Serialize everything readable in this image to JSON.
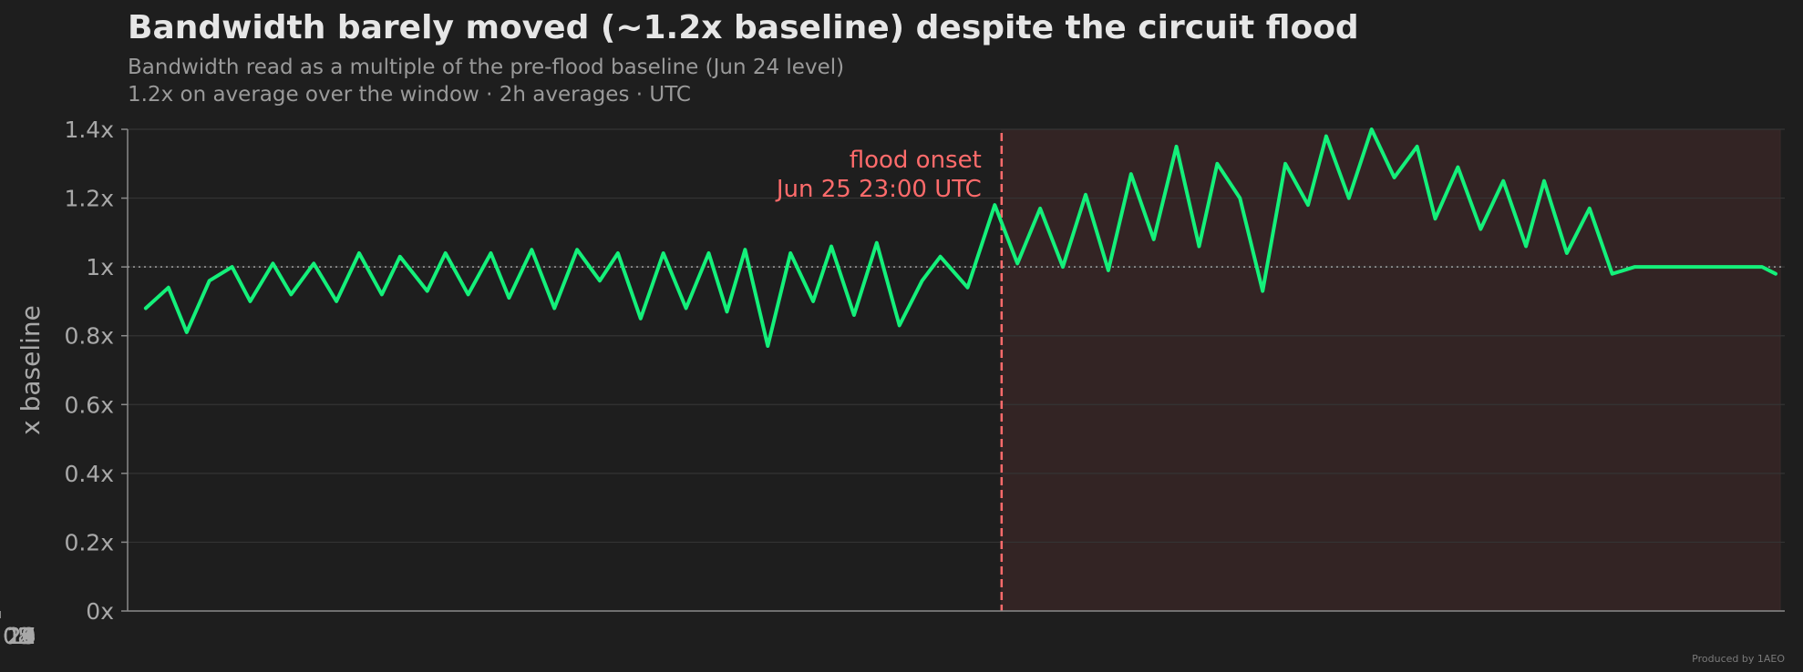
{
  "chart_data": {
    "type": "line",
    "title": "Bandwidth barely moved (~1.2x baseline) despite the circuit flood",
    "subtitle_lines": [
      "Bandwidth read as a multiple of the pre-flood baseline (Jun 24 level)",
      "1.2x on average over the window · 2h averages · UTC"
    ],
    "ylabel": "x baseline",
    "xlabel": "",
    "ylim": [
      0,
      1.4
    ],
    "y_ticks": [
      {
        "value": 0,
        "label": "0x"
      },
      {
        "value": 0.2,
        "label": "0.2x"
      },
      {
        "value": 0.4,
        "label": "0.4x"
      },
      {
        "value": 0.6,
        "label": "0.6x"
      },
      {
        "value": 0.8,
        "label": "0.8x"
      },
      {
        "value": 1.0,
        "label": "1x"
      },
      {
        "value": 1.2,
        "label": "1.2x"
      },
      {
        "value": 1.4,
        "label": "1.4x"
      }
    ],
    "xlim": [
      "2024-06-09T22:00",
      "2024-07-10T08:00"
    ],
    "x_ticks": [
      {
        "value": "2024-06-11",
        "label": "Jun 11"
      },
      {
        "value": "2024-06-14",
        "label": "Jun 14"
      },
      {
        "value": "2024-06-17",
        "label": "Jun 17"
      },
      {
        "value": "2024-06-20",
        "label": "Jun 20"
      },
      {
        "value": "2024-06-23",
        "label": "Jun 23"
      },
      {
        "value": "2024-06-26",
        "label": "Jun 26"
      },
      {
        "value": "2024-06-29",
        "label": "Jun 29"
      },
      {
        "value": "2024-07-02",
        "label": "Jul 02"
      },
      {
        "value": "2024-07-05",
        "label": "Jul 05"
      },
      {
        "value": "2024-07-08",
        "label": "Jul 08"
      }
    ],
    "baseline": 1.0,
    "grid": true,
    "event": {
      "time": "2024-06-25T23:00",
      "label_lines": [
        "flood onset",
        "Jun 25 23:00 UTC"
      ],
      "shade_until": "2024-07-10T06:00"
    },
    "series": [
      {
        "color": "#14f07a",
        "x": [
          "2024-06-10T06:00",
          "2024-06-10T16:00",
          "2024-06-11T00:00",
          "2024-06-11T10:00",
          "2024-06-11T20:00",
          "2024-06-12T04:00",
          "2024-06-12T14:00",
          "2024-06-12T22:00",
          "2024-06-13T08:00",
          "2024-06-13T18:00",
          "2024-06-14T04:00",
          "2024-06-14T14:00",
          "2024-06-14T22:00",
          "2024-06-15T10:00",
          "2024-06-15T18:00",
          "2024-06-16T04:00",
          "2024-06-16T14:00",
          "2024-06-16T22:00",
          "2024-06-17T08:00",
          "2024-06-17T18:00",
          "2024-06-18T04:00",
          "2024-06-18T14:00",
          "2024-06-18T22:00",
          "2024-06-19T08:00",
          "2024-06-19T18:00",
          "2024-06-20T04:00",
          "2024-06-20T14:00",
          "2024-06-20T22:00",
          "2024-06-21T06:00",
          "2024-06-21T16:00",
          "2024-06-22T02:00",
          "2024-06-22T12:00",
          "2024-06-22T20:00",
          "2024-06-23T06:00",
          "2024-06-23T16:00",
          "2024-06-24T02:00",
          "2024-06-24T12:00",
          "2024-06-24T20:00",
          "2024-06-25T08:00",
          "2024-06-25T20:00",
          "2024-06-26T06:00",
          "2024-06-26T16:00",
          "2024-06-27T02:00",
          "2024-06-27T12:00",
          "2024-06-27T22:00",
          "2024-06-28T08:00",
          "2024-06-28T18:00",
          "2024-06-29T04:00",
          "2024-06-29T14:00",
          "2024-06-29T22:00",
          "2024-06-30T08:00",
          "2024-06-30T18:00",
          "2024-07-01T04:00",
          "2024-07-01T14:00",
          "2024-07-01T22:00",
          "2024-07-02T08:00",
          "2024-07-02T18:00",
          "2024-07-03T04:00",
          "2024-07-03T14:00",
          "2024-07-03T22:00",
          "2024-07-04T08:00",
          "2024-07-04T18:00",
          "2024-07-05T04:00",
          "2024-07-05T14:00",
          "2024-07-05T22:00",
          "2024-07-06T08:00",
          "2024-07-06T18:00",
          "2024-07-07T04:00",
          "2024-07-07T14:00",
          "2024-07-07T22:00",
          "2024-07-08T08:00",
          "2024-07-08T18:00",
          "2024-07-09T04:00",
          "2024-07-09T14:00",
          "2024-07-09T22:00",
          "2024-07-10T04:00"
        ],
        "values": [
          0.88,
          0.94,
          0.81,
          0.96,
          1.0,
          0.9,
          1.01,
          0.92,
          1.01,
          0.9,
          1.04,
          0.92,
          1.03,
          0.93,
          1.04,
          0.92,
          1.04,
          0.91,
          1.05,
          0.88,
          1.05,
          0.96,
          1.04,
          0.85,
          1.04,
          0.88,
          1.04,
          0.87,
          1.05,
          0.77,
          1.04,
          0.9,
          1.06,
          0.86,
          1.07,
          0.83,
          0.96,
          1.03,
          0.94,
          1.18,
          1.01,
          1.17,
          1.0,
          1.21,
          0.99,
          1.27,
          1.08,
          1.35,
          1.06,
          1.3,
          1.2,
          0.93,
          1.3,
          1.18,
          1.38,
          1.2,
          1.4,
          1.26,
          1.35,
          1.14,
          1.29,
          1.11,
          1.25,
          1.06,
          1.25,
          1.04,
          1.17,
          0.98,
          1.0,
          1.0,
          1.0,
          1.0,
          1.0,
          1.0,
          1.0,
          0.98
        ]
      }
    ]
  },
  "footer": {
    "credit": "Produced by 1AEO"
  }
}
